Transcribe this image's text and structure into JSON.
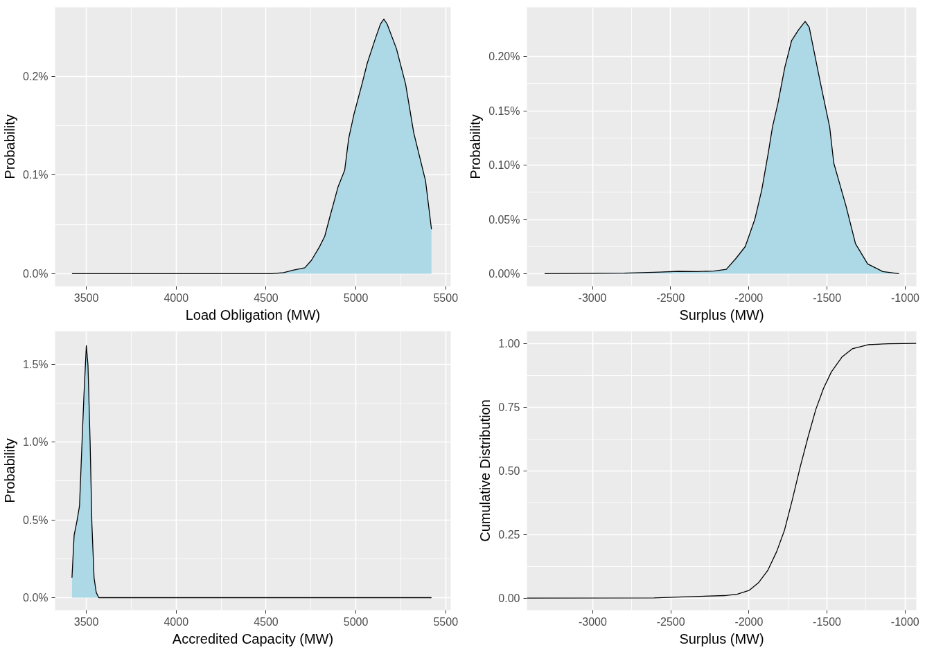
{
  "chart_data": [
    {
      "type": "area",
      "xlabel": "Load Obligation (MW)",
      "ylabel": "Probability",
      "grid": true,
      "xlim": [
        3326,
        5528
      ],
      "xticks": [
        3500,
        4000,
        4500,
        5000,
        5500
      ],
      "ylim": [
        -0.000127,
        0.0027
      ],
      "yticks": [
        {
          "value": 0,
          "label": "0.0%"
        },
        {
          "value": 0.001,
          "label": "0.1%"
        },
        {
          "value": 0.002,
          "label": "0.2%"
        }
      ],
      "series": [
        {
          "color": "#add8e6",
          "x": [
            3420,
            4532,
            4598,
            4650,
            4716,
            4753,
            4797,
            4827,
            4856,
            4901,
            4938,
            4960,
            4990,
            5034,
            5063,
            5108,
            5137,
            5156,
            5174,
            5226,
            5277,
            5322,
            5388,
            5421
          ],
          "values": [
            0,
            0,
            1e-05,
            3.5e-05,
            6e-05,
            0.000136,
            0.00027,
            0.00038,
            0.00058,
            0.00088,
            0.00105,
            0.00137,
            0.00162,
            0.00192,
            0.00213,
            0.00238,
            0.00253,
            0.00258,
            0.00253,
            0.00228,
            0.00192,
            0.00143,
            0.00094,
            0.00045
          ]
        }
      ]
    },
    {
      "type": "area",
      "xlabel": "Surplus (MW)",
      "ylabel": "Probability",
      "grid": true,
      "xlim": [
        -3419,
        -929
      ],
      "xticks": [
        -3000,
        -2500,
        -2000,
        -1500,
        -1000
      ],
      "ylim": [
        -0.000115,
        0.002454
      ],
      "yticks": [
        {
          "value": 0,
          "label": "0.00%"
        },
        {
          "value": 0.0005,
          "label": "0.05%"
        },
        {
          "value": 0.001,
          "label": "0.10%"
        },
        {
          "value": 0.0015,
          "label": "0.15%"
        },
        {
          "value": 0.002,
          "label": "0.20%"
        }
      ],
      "series": [
        {
          "color": "#add8e6",
          "x": [
            -3306,
            -2797,
            -2570,
            -2449,
            -2327,
            -2223,
            -2144,
            -2083,
            -2023,
            -1962,
            -1917,
            -1875,
            -1849,
            -1814,
            -1770,
            -1727,
            -1683,
            -1640,
            -1614,
            -1544,
            -1483,
            -1457,
            -1379,
            -1318,
            -1240,
            -1144,
            -1040
          ],
          "values": [
            0,
            5e-06,
            1.5e-05,
            2.2e-05,
            2e-05,
            2.5e-05,
            4e-05,
            0.00014,
            0.00025,
            0.0005,
            0.000775,
            0.00112,
            0.00135,
            0.00157,
            0.0019,
            0.002145,
            0.002244,
            0.002324,
            0.00227,
            0.00177,
            0.00135,
            0.00102,
            0.000625,
            0.000276,
            9e-05,
            2e-05,
            0
          ]
        }
      ]
    },
    {
      "type": "area",
      "xlabel": "Accredited Capacity (MW)",
      "ylabel": "Probability",
      "grid": true,
      "xlim": [
        3326,
        5528
      ],
      "xticks": [
        3500,
        4000,
        4500,
        5000,
        5500
      ],
      "ylim": [
        -0.0008,
        0.01713
      ],
      "yticks": [
        {
          "value": 0,
          "label": "0.0%"
        },
        {
          "value": 0.005,
          "label": "0.5%"
        },
        {
          "value": 0.01,
          "label": "1.0%"
        },
        {
          "value": 0.015,
          "label": "1.5%"
        }
      ],
      "series": [
        {
          "color": "#add8e6",
          "x": [
            3420,
            3432,
            3447,
            3462,
            3476,
            3487,
            3500,
            3509,
            3521,
            3531,
            3543,
            3555,
            3569,
            5421
          ],
          "values": [
            0.00128,
            0.00402,
            0.00488,
            0.0059,
            0.01,
            0.0131,
            0.0162,
            0.01497,
            0.01,
            0.0047,
            0.00128,
            0.00034,
            0,
            0
          ]
        }
      ]
    },
    {
      "type": "line",
      "xlabel": "Surplus (MW)",
      "ylabel": "Cumulative Distribution",
      "grid": true,
      "xlim": [
        -3421,
        -928
      ],
      "xticks": [
        -3000,
        -2500,
        -2000,
        -1500,
        -1000
      ],
      "ylim": [
        -0.047,
        1.048
      ],
      "yticks": [
        {
          "value": 0,
          "label": "0.00"
        },
        {
          "value": 0.25,
          "label": "0.25"
        },
        {
          "value": 0.5,
          "label": "0.50"
        },
        {
          "value": 0.75,
          "label": "0.75"
        },
        {
          "value": 1,
          "label": "1.00"
        }
      ],
      "series": [
        {
          "color": "#000000",
          "x": [
            -3421,
            -2607,
            -2424,
            -2156,
            -2073,
            -1997,
            -1939,
            -1880,
            -1822,
            -1772,
            -1722,
            -1672,
            -1622,
            -1572,
            -1522,
            -1472,
            -1405,
            -1338,
            -1237,
            -1104,
            -928
          ],
          "values": [
            0,
            0.001,
            0.005,
            0.01,
            0.016,
            0.031,
            0.06,
            0.108,
            0.183,
            0.267,
            0.386,
            0.514,
            0.631,
            0.74,
            0.824,
            0.888,
            0.946,
            0.979,
            0.995,
            0.999,
            1.0
          ]
        }
      ]
    }
  ]
}
